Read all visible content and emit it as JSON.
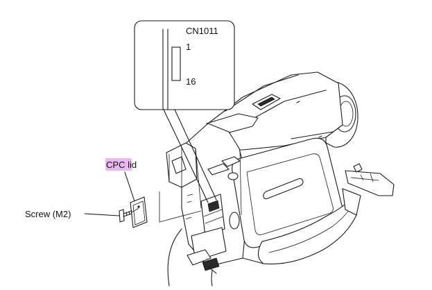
{
  "labels": {
    "connector": "CN1011",
    "pin_first": "1",
    "pin_last": "16",
    "lid_prefix": "CPC",
    "lid_suffix": " lid",
    "screw": "Screw (M2)"
  },
  "colors": {
    "highlight": "#e9b8ee",
    "line": "#1a1a1a",
    "background": "#ffffff"
  }
}
